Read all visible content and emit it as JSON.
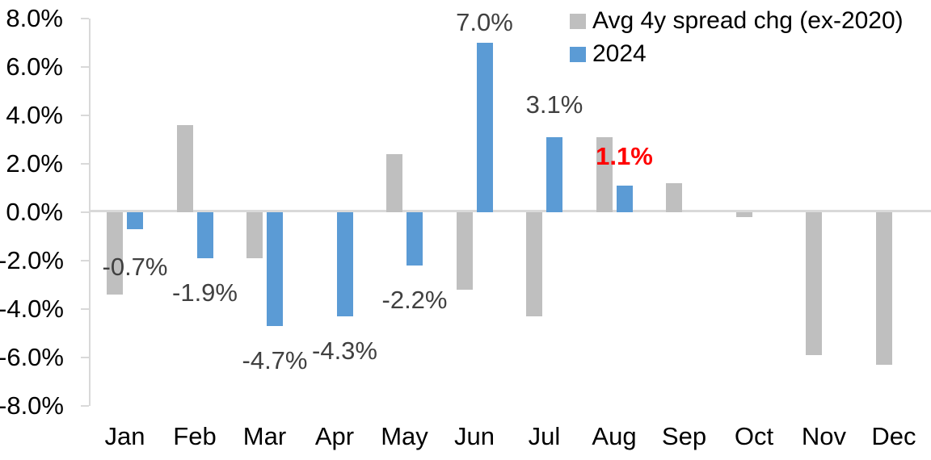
{
  "chart_data": {
    "type": "bar",
    "title": "",
    "xlabel": "",
    "ylabel": "",
    "categories": [
      "Jan",
      "Feb",
      "Mar",
      "Apr",
      "May",
      "Jun",
      "Jul",
      "Aug",
      "Sep",
      "Oct",
      "Nov",
      "Dec"
    ],
    "series": [
      {
        "name": "Avg 4y spread chg (ex-2020)",
        "color": "#bfbfbf",
        "values": [
          -3.4,
          3.6,
          -1.9,
          0.0,
          2.4,
          -3.2,
          -4.3,
          3.1,
          1.2,
          -0.2,
          -5.9,
          -6.3
        ]
      },
      {
        "name": "2024",
        "color": "#5b9bd5",
        "values": [
          -0.7,
          -1.9,
          -4.7,
          -4.3,
          -2.2,
          7.0,
          3.1,
          1.1,
          null,
          null,
          null,
          null
        ]
      }
    ],
    "data_labels": [
      {
        "month_index": 0,
        "text": "-0.7%",
        "color": "#404040",
        "bold": false,
        "dy": 4
      },
      {
        "month_index": 1,
        "text": "-1.9%",
        "color": "#404040",
        "bold": false,
        "dy": 0
      },
      {
        "month_index": 2,
        "text": "-4.7%",
        "color": "#404040",
        "bold": false,
        "dy": 0
      },
      {
        "month_index": 3,
        "text": "-4.3%",
        "color": "#404040",
        "bold": false,
        "dy": 0
      },
      {
        "month_index": 4,
        "text": "-2.2%",
        "color": "#404040",
        "bold": false,
        "dy": 0
      },
      {
        "month_index": 5,
        "text": "7.0%",
        "color": "#404040",
        "bold": false,
        "dy": 15
      },
      {
        "month_index": 6,
        "text": "3.1%",
        "color": "#404040",
        "bold": false,
        "dy": 0
      },
      {
        "month_index": 7,
        "text": "1.1%",
        "color": "#ff0000",
        "bold": true,
        "dy": 4
      }
    ],
    "y_ticks": [
      "8.0%",
      "6.0%",
      "4.0%",
      "2.0%",
      "0.0%",
      "-2.0%",
      "-4.0%",
      "-6.0%",
      "-8.0%"
    ],
    "y_tick_values": [
      8,
      6,
      4,
      2,
      0,
      -2,
      -4,
      -6,
      -8
    ],
    "ylim": [
      -8,
      8
    ],
    "grid": false,
    "legend_position": "top-right",
    "axis_color": "#d9d9d9",
    "tick_label_color": "#000000"
  }
}
